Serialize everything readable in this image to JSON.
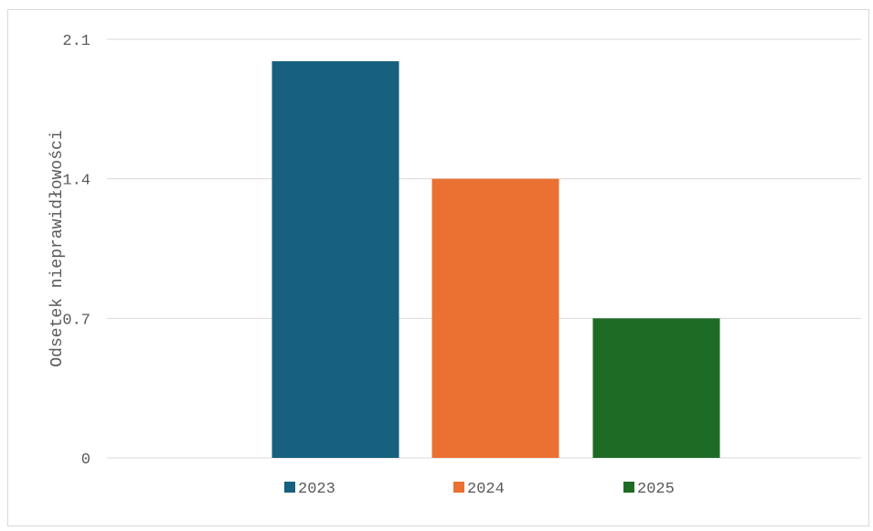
{
  "chart_data": {
    "type": "bar",
    "categories": [
      "2023",
      "2024",
      "2025"
    ],
    "series": [
      {
        "name": "2023",
        "values": [
          1.99,
          null,
          null
        ],
        "color": "#17607f"
      },
      {
        "name": "2024",
        "values": [
          null,
          1.4,
          null
        ],
        "color": "#ea7132"
      },
      {
        "name": "2025",
        "values": [
          null,
          null,
          0.7
        ],
        "color": "#1e6b25"
      }
    ],
    "title": "",
    "xlabel": "",
    "ylabel": "Odsetek nieprawidłowości",
    "ylim": [
      0,
      2.1
    ],
    "yticks": [
      "0",
      "0.7",
      "1.4",
      "2.1"
    ],
    "grid": true,
    "legend_position": "bottom"
  }
}
